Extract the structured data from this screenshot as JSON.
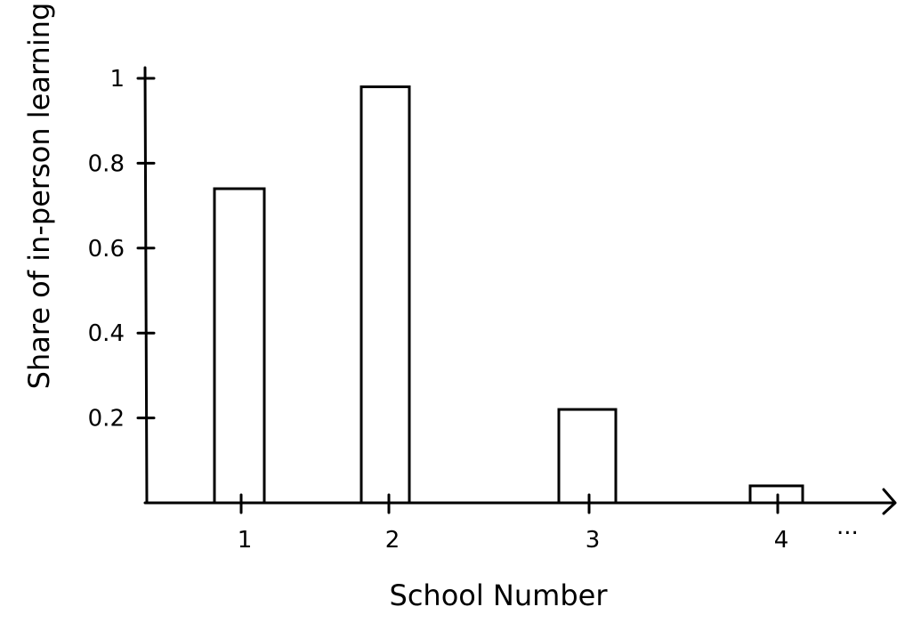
{
  "chart_data": {
    "type": "bar",
    "title": "",
    "xlabel": "School Number",
    "ylabel": "Share of in-person learning",
    "categories": [
      "1",
      "2",
      "3",
      "4"
    ],
    "values": [
      0.74,
      0.98,
      0.22,
      0.04
    ],
    "ylim": [
      0,
      1
    ],
    "y_ticks": [
      0.2,
      0.4,
      0.6,
      0.8,
      1
    ],
    "y_tick_labels": [
      "0.2",
      "0.4",
      "0.6",
      "0.8",
      "1"
    ],
    "x_continuation": "...",
    "grid": false,
    "style": "hand-drawn, unfilled bars"
  }
}
